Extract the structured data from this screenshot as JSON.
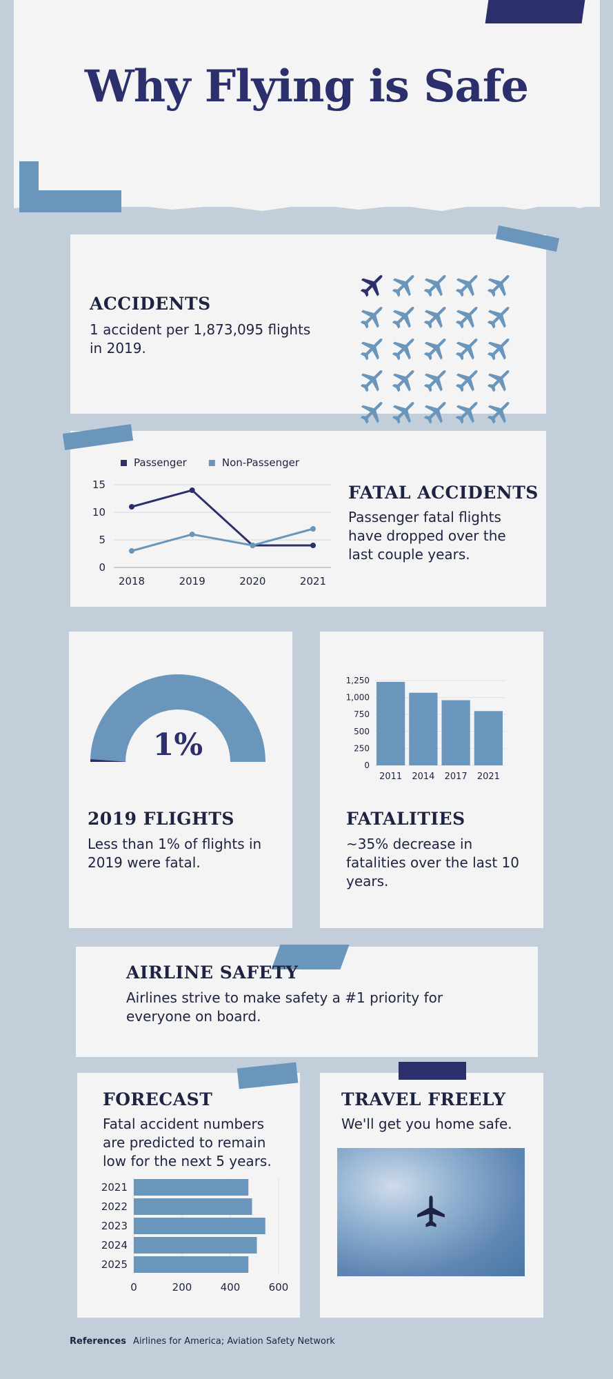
{
  "page": {
    "title": "Why Flying is Safe"
  },
  "accidents": {
    "heading": "ACCIDENTS",
    "text": "1 accident per 1,873,095 flights in 2019.",
    "icon_grid": {
      "icon": "airplane-icon",
      "total": 25,
      "highlighted": 1,
      "highlight_color": "#2b2f6b",
      "base_color": "#6b96bb"
    }
  },
  "fatal_accidents": {
    "heading": "FATAL ACCIDENTS",
    "text": "Passenger fatal flights have dropped over the last couple years.",
    "chart_data": {
      "type": "line",
      "x": [
        "2018",
        "2019",
        "2020",
        "2021"
      ],
      "series": [
        {
          "name": "Passenger",
          "values": [
            11,
            14,
            4,
            4
          ],
          "color": "#2b2f6b"
        },
        {
          "name": "Non-Passenger",
          "values": [
            3,
            6,
            4,
            7
          ],
          "color": "#6b96bb"
        }
      ],
      "yticks": [
        "0",
        "5",
        "10",
        "15"
      ],
      "ylim": [
        0,
        15
      ],
      "legend": "top",
      "grid": true
    }
  },
  "flights_2019": {
    "heading": "2019 FLIGHTS",
    "text": "Less than 1% of flights in 2019 were fatal.",
    "gauge": {
      "label": "1%",
      "value": 0.01,
      "fill_color": "#6b96bb",
      "accent_color": "#2b2f6b"
    }
  },
  "fatalities": {
    "heading": "FATALITIES",
    "text": "~35% decrease in fatalities over the last 10 years.",
    "chart_data": {
      "type": "bar",
      "categories": [
        "2011",
        "2014",
        "2017",
        "2021"
      ],
      "values": [
        1230,
        1070,
        960,
        800
      ],
      "yticks": [
        "0",
        "250",
        "500",
        "750",
        "1,000",
        "1,250"
      ],
      "ylim": [
        0,
        1250
      ],
      "grid": true
    }
  },
  "airline_safety": {
    "heading": "AIRLINE SAFETY",
    "text": "Airlines strive to make safety a #1 priority for everyone on board."
  },
  "forecast": {
    "heading": "FORECAST",
    "text": "Fatal accident numbers are predicted to remain low for the next 5 years.",
    "chart_data": {
      "type": "bar",
      "orientation": "horizontal",
      "categories": [
        "2021",
        "2022",
        "2023",
        "2024",
        "2025"
      ],
      "values": [
        475,
        490,
        545,
        510,
        475
      ],
      "xticks": [
        "0",
        "200",
        "400",
        "600"
      ],
      "xlim": [
        0,
        600
      ],
      "grid": true
    }
  },
  "travel": {
    "heading": "TRAVEL FREELY",
    "text": "We'll get you home safe.",
    "photo_icon": "airplane-icon"
  },
  "references": {
    "label": "References",
    "text": "Airlines for America; Aviation Safety Network"
  },
  "colors": {
    "navy": "#2b2f6b",
    "steel": "#6b96bb",
    "ink": "#1d2340",
    "background": "#c3cedb",
    "paper": "#f4f4f4"
  }
}
